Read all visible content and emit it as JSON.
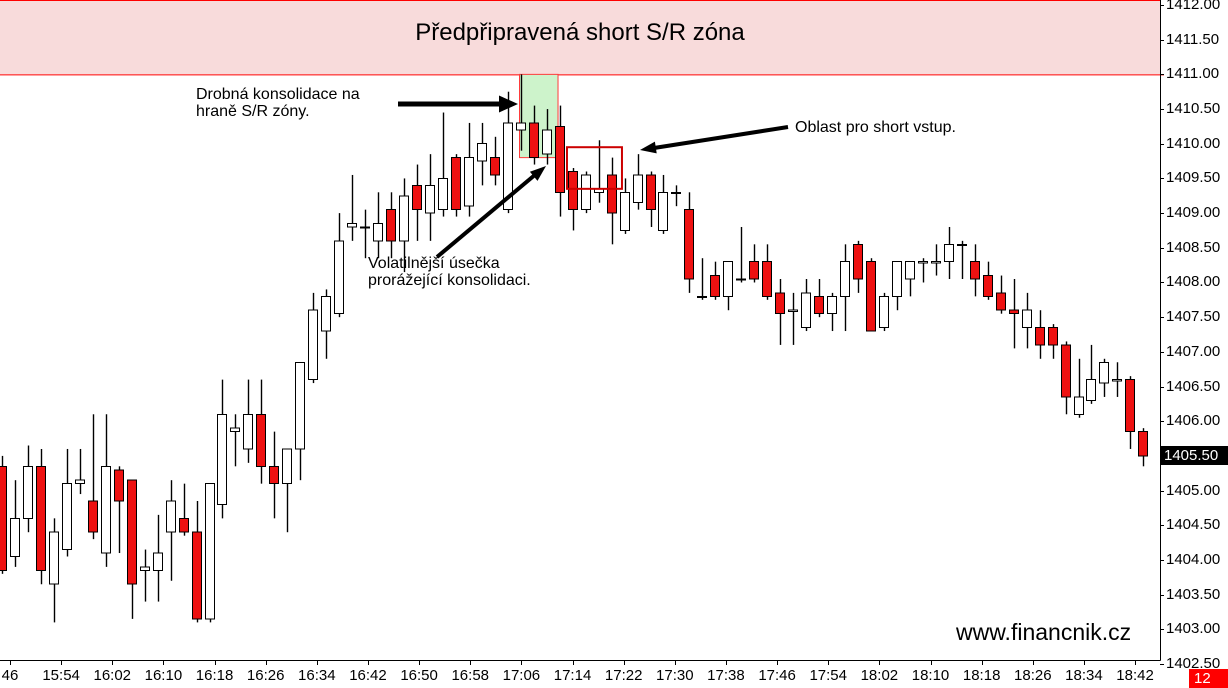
{
  "title": "Předpřipravená short S/R zóna",
  "watermark": "www.financnik.cz",
  "badge": "12",
  "annotations": {
    "consolidation": "Drobná konsolidace na hraně S/R zóny.",
    "volatile_bar": "Volatilnější úsečka prorážející konsolidaci.",
    "entry": "Oblast pro short vstup."
  },
  "chart_data": {
    "type": "candlestick",
    "title": "Předpřipravená short S/R zóna",
    "grid": false,
    "legend": "none",
    "price_axis": {
      "side": "right",
      "max": 1412.0,
      "min": 1402.5,
      "step": 0.5,
      "ticks": [
        "1412.00",
        "1411.50",
        "1411.00",
        "1410.50",
        "1410.00",
        "1409.50",
        "1409.00",
        "1408.50",
        "1408.00",
        "1407.50",
        "1407.00",
        "1406.50",
        "1406.00",
        "1405.50",
        "1405.00",
        "1404.50",
        "1404.00",
        "1403.50",
        "1403.00",
        "1402.50"
      ]
    },
    "last_price": "1405.50",
    "time_ticks": [
      "46",
      "15:54",
      "16:02",
      "16:10",
      "16:18",
      "16:26",
      "16:34",
      "16:42",
      "16:50",
      "16:58",
      "17:06",
      "17:14",
      "17:22",
      "17:30",
      "17:38",
      "17:46",
      "17:54",
      "18:02",
      "18:10",
      "18:18",
      "18:26",
      "18:34",
      "18:42"
    ],
    "up_color": "#ffffff",
    "down_color": "#ee1111",
    "sr_zone": {
      "label": "Předpřipravená short S/R zóna",
      "bottom_price": 1411.0,
      "fill": "#f8dbdb",
      "line": "#ff0000"
    },
    "consolidation_zone": {
      "start_candle": 39.9,
      "end_candle": 42.87,
      "top_price": 1411.0,
      "bottom_price": 1409.8,
      "fill": "#cdf3cb",
      "line": "#ff3b3b"
    },
    "entry_zone": {
      "start_candle": 43.56,
      "end_candle": 47.8,
      "top_price": 1409.95,
      "bottom_price": 1409.35,
      "line": "#cc0000"
    },
    "candles": [
      [
        1405.35,
        1405.5,
        1403.8,
        1403.85
      ],
      [
        1404.05,
        1405.15,
        1403.9,
        1404.6
      ],
      [
        1404.6,
        1405.65,
        1404.4,
        1405.35
      ],
      [
        1405.35,
        1405.6,
        1403.65,
        1403.85
      ],
      [
        1403.65,
        1404.6,
        1403.1,
        1404.4
      ],
      [
        1404.15,
        1405.6,
        1404.05,
        1405.1
      ],
      [
        1405.1,
        1405.6,
        1404.95,
        1405.15
      ],
      [
        1404.85,
        1406.1,
        1404.3,
        1404.4
      ],
      [
        1404.1,
        1406.1,
        1403.9,
        1405.35
      ],
      [
        1405.3,
        1405.35,
        1404.1,
        1404.85
      ],
      [
        1405.15,
        1405.15,
        1403.15,
        1403.65
      ],
      [
        1403.85,
        1404.15,
        1403.4,
        1403.9
      ],
      [
        1403.85,
        1404.65,
        1403.4,
        1404.1
      ],
      [
        1404.4,
        1405.15,
        1403.7,
        1404.85
      ],
      [
        1404.6,
        1405.1,
        1404.35,
        1404.4
      ],
      [
        1404.4,
        1404.85,
        1403.1,
        1403.15
      ],
      [
        1403.15,
        1405.1,
        1403.1,
        1405.1
      ],
      [
        1404.8,
        1406.6,
        1404.6,
        1406.1
      ],
      [
        1405.85,
        1406.1,
        1405.35,
        1405.9
      ],
      [
        1405.6,
        1406.6,
        1405.4,
        1406.1
      ],
      [
        1406.1,
        1406.6,
        1405.1,
        1405.35
      ],
      [
        1405.35,
        1405.85,
        1404.6,
        1405.1
      ],
      [
        1405.1,
        1405.6,
        1404.4,
        1405.6
      ],
      [
        1405.6,
        1406.85,
        1405.15,
        1406.85
      ],
      [
        1406.6,
        1407.85,
        1406.55,
        1407.6
      ],
      [
        1407.3,
        1407.9,
        1406.9,
        1407.8
      ],
      [
        1407.55,
        1409.0,
        1407.5,
        1408.6
      ],
      [
        1408.8,
        1409.55,
        1408.6,
        1408.85
      ],
      [
        1408.8,
        1409.05,
        1408.35,
        1408.8
      ],
      [
        1408.6,
        1409.3,
        1408.35,
        1408.85
      ],
      [
        1409.05,
        1409.3,
        1408.35,
        1408.6
      ],
      [
        1408.6,
        1409.5,
        1408.15,
        1409.25
      ],
      [
        1409.4,
        1409.7,
        1408.6,
        1409.05
      ],
      [
        1409.0,
        1409.85,
        1408.6,
        1409.4
      ],
      [
        1409.05,
        1410.45,
        1408.95,
        1409.5
      ],
      [
        1409.8,
        1409.85,
        1408.95,
        1409.05
      ],
      [
        1409.1,
        1410.3,
        1408.95,
        1409.8
      ],
      [
        1409.75,
        1410.3,
        1409.4,
        1410.0
      ],
      [
        1409.8,
        1410.1,
        1409.4,
        1409.55
      ],
      [
        1409.05,
        1410.75,
        1409.0,
        1410.3
      ],
      [
        1410.2,
        1411.0,
        1409.9,
        1410.3
      ],
      [
        1410.3,
        1410.55,
        1409.7,
        1409.8
      ],
      [
        1409.85,
        1410.5,
        1409.7,
        1410.2
      ],
      [
        1410.25,
        1410.55,
        1408.95,
        1409.3
      ],
      [
        1409.6,
        1409.65,
        1408.75,
        1409.05
      ],
      [
        1409.05,
        1409.6,
        1409.0,
        1409.55
      ],
      [
        1409.3,
        1410.05,
        1409.15,
        1409.35
      ],
      [
        1409.55,
        1409.8,
        1408.55,
        1409.0
      ],
      [
        1408.75,
        1409.5,
        1408.7,
        1409.3
      ],
      [
        1409.15,
        1409.85,
        1409.05,
        1409.55
      ],
      [
        1409.55,
        1409.6,
        1408.8,
        1409.05
      ],
      [
        1408.75,
        1409.55,
        1408.7,
        1409.3
      ],
      [
        1409.3,
        1409.4,
        1409.1,
        1409.3
      ],
      [
        1409.05,
        1409.3,
        1407.85,
        1408.05
      ],
      [
        1407.8,
        1408.35,
        1407.75,
        1407.8
      ],
      [
        1408.1,
        1408.3,
        1407.75,
        1407.8
      ],
      [
        1407.8,
        1408.3,
        1407.6,
        1408.3
      ],
      [
        1408.05,
        1408.8,
        1408.0,
        1408.05
      ],
      [
        1408.3,
        1408.55,
        1408.0,
        1408.05
      ],
      [
        1408.3,
        1408.55,
        1407.75,
        1407.8
      ],
      [
        1407.85,
        1408.05,
        1407.1,
        1407.55
      ],
      [
        1407.6,
        1407.85,
        1407.1,
        1407.6
      ],
      [
        1407.35,
        1408.05,
        1407.3,
        1407.85
      ],
      [
        1407.8,
        1408.05,
        1407.5,
        1407.55
      ],
      [
        1407.55,
        1407.85,
        1407.3,
        1407.8
      ],
      [
        1407.8,
        1408.55,
        1407.3,
        1408.3
      ],
      [
        1408.55,
        1408.6,
        1407.85,
        1408.05
      ],
      [
        1408.3,
        1408.35,
        1407.3,
        1407.3
      ],
      [
        1407.35,
        1407.85,
        1407.3,
        1407.8
      ],
      [
        1407.8,
        1408.3,
        1407.6,
        1408.3
      ],
      [
        1408.05,
        1408.3,
        1407.8,
        1408.3
      ],
      [
        1408.3,
        1408.35,
        1408.0,
        1408.3
      ],
      [
        1408.3,
        1408.55,
        1408.1,
        1408.3
      ],
      [
        1408.3,
        1408.8,
        1408.05,
        1408.55
      ],
      [
        1408.55,
        1408.6,
        1408.05,
        1408.55
      ],
      [
        1408.3,
        1408.55,
        1407.8,
        1408.05
      ],
      [
        1408.1,
        1408.3,
        1407.75,
        1407.8
      ],
      [
        1407.85,
        1408.1,
        1407.55,
        1407.6
      ],
      [
        1407.6,
        1408.05,
        1407.05,
        1407.55
      ],
      [
        1407.35,
        1407.85,
        1407.05,
        1407.6
      ],
      [
        1407.35,
        1407.6,
        1406.9,
        1407.1
      ],
      [
        1407.35,
        1407.4,
        1406.9,
        1407.1
      ],
      [
        1407.1,
        1407.15,
        1406.1,
        1406.35
      ],
      [
        1406.1,
        1406.9,
        1406.05,
        1406.35
      ],
      [
        1406.3,
        1407.1,
        1406.25,
        1406.6
      ],
      [
        1406.55,
        1406.9,
        1406.35,
        1406.85
      ],
      [
        1406.6,
        1406.85,
        1406.35,
        1406.6
      ],
      [
        1406.6,
        1406.65,
        1405.6,
        1405.85
      ],
      [
        1405.85,
        1405.9,
        1405.35,
        1405.5
      ]
    ]
  }
}
